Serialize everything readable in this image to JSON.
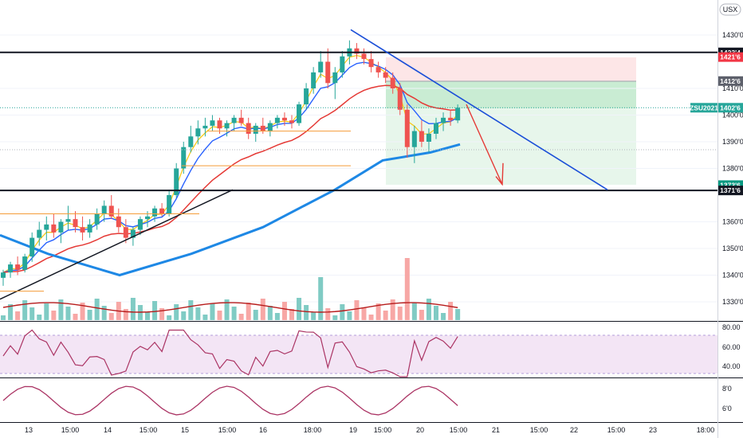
{
  "symbol": "ZSU2021",
  "currency": "USX",
  "colors": {
    "up": "#26a69a",
    "down": "#ef5350",
    "ema_blue": "#2962ff",
    "ema_red": "#e53935",
    "sma_thick": "#1e88e5",
    "yellow": "#f9c80e",
    "trendline": "#1b4fd8",
    "rsi_fill": "#f3e5f5",
    "rsi_line": "#ab3464",
    "tag_red": "#f23645",
    "tag_gray": "#5d606b",
    "tag_green": "#089981",
    "tag_black": "#131722",
    "tag_teal": "#26a69a"
  },
  "price_axis": {
    "labels": [
      "1430'0",
      "1410'0",
      "1400'0",
      "1390'0",
      "1380'0",
      "1360'0",
      "1350'0",
      "1340'0",
      "1330'0"
    ],
    "values": [
      1430,
      1410,
      1400,
      1390,
      1380,
      1360,
      1350,
      1340,
      1330
    ],
    "range": [
      1325,
      1440
    ]
  },
  "price_tags": [
    {
      "label": "1423'4",
      "value": 1423.5,
      "color": "tag_black"
    },
    {
      "label": "1421'6",
      "value": 1421.75,
      "color": "tag_red"
    },
    {
      "label": "1412'6",
      "value": 1412.75,
      "color": "tag_gray"
    },
    {
      "label": "ZSU2021",
      "value": 1402.75,
      "color": "tag_teal",
      "wide": true
    },
    {
      "label": "1402'6",
      "value": 1402.75,
      "color": "tag_teal"
    },
    {
      "label": "1373'6",
      "value": 1373.75,
      "color": "tag_green"
    },
    {
      "label": "1371'6",
      "value": 1371.75,
      "color": "tag_black"
    }
  ],
  "time_axis": [
    "13",
    "15:00",
    "14",
    "15:00",
    "15",
    "15:00",
    "16",
    "18:00",
    "19",
    "15:00",
    "20",
    "15:00",
    "21",
    "15:00",
    "22",
    "15:00",
    "23",
    "18:00"
  ],
  "rsi_axis": [
    "80.00",
    "60.00",
    "40.00"
  ],
  "stoch_axis": [
    "8'0",
    "6'0"
  ],
  "chart_data": {
    "type": "candlestick",
    "levels": {
      "resistance": 1423.5,
      "support": 1371.75,
      "stop": 1421.75,
      "entry": 1412.75,
      "target": 1373.75,
      "last": 1402.75
    },
    "candles": [
      [
        1339,
        1342,
        1336,
        1341
      ],
      [
        1341,
        1345,
        1339,
        1344
      ],
      [
        1344,
        1347,
        1340,
        1342
      ],
      [
        1342,
        1348,
        1341,
        1347
      ],
      [
        1347,
        1356,
        1345,
        1354
      ],
      [
        1354,
        1360,
        1351,
        1357
      ],
      [
        1357,
        1362,
        1353,
        1359
      ],
      [
        1359,
        1363,
        1354,
        1356
      ],
      [
        1356,
        1361,
        1352,
        1360
      ],
      [
        1360,
        1366,
        1357,
        1361
      ],
      [
        1361,
        1364,
        1356,
        1358
      ],
      [
        1358,
        1362,
        1353,
        1356
      ],
      [
        1356,
        1361,
        1354,
        1359
      ],
      [
        1359,
        1365,
        1357,
        1363
      ],
      [
        1363,
        1368,
        1360,
        1366
      ],
      [
        1366,
        1370,
        1361,
        1362
      ],
      [
        1362,
        1365,
        1356,
        1358
      ],
      [
        1358,
        1361,
        1352,
        1354
      ],
      [
        1354,
        1358,
        1351,
        1357
      ],
      [
        1357,
        1362,
        1355,
        1361
      ],
      [
        1361,
        1364,
        1358,
        1362
      ],
      [
        1362,
        1366,
        1360,
        1365
      ],
      [
        1365,
        1367,
        1362,
        1363
      ],
      [
        1363,
        1372,
        1362,
        1370
      ],
      [
        1370,
        1382,
        1369,
        1380
      ],
      [
        1380,
        1390,
        1378,
        1388
      ],
      [
        1388,
        1396,
        1386,
        1392
      ],
      [
        1392,
        1398,
        1389,
        1395
      ],
      [
        1395,
        1399,
        1392,
        1396
      ],
      [
        1396,
        1400,
        1394,
        1398
      ],
      [
        1398,
        1399,
        1393,
        1395
      ],
      [
        1395,
        1398,
        1392,
        1397
      ],
      [
        1397,
        1400,
        1394,
        1399
      ],
      [
        1399,
        1402,
        1396,
        1397
      ],
      [
        1397,
        1399,
        1391,
        1393
      ],
      [
        1393,
        1397,
        1390,
        1396
      ],
      [
        1396,
        1399,
        1393,
        1394
      ],
      [
        1394,
        1398,
        1392,
        1397
      ],
      [
        1397,
        1400,
        1395,
        1399
      ],
      [
        1399,
        1401,
        1396,
        1398
      ],
      [
        1398,
        1400,
        1395,
        1397
      ],
      [
        1397,
        1405,
        1396,
        1404
      ],
      [
        1404,
        1412,
        1402,
        1410
      ],
      [
        1410,
        1418,
        1408,
        1416
      ],
      [
        1416,
        1424,
        1414,
        1420
      ],
      [
        1420,
        1425,
        1410,
        1412
      ],
      [
        1412,
        1418,
        1406,
        1416
      ],
      [
        1416,
        1424,
        1414,
        1422
      ],
      [
        1422,
        1428,
        1419,
        1425
      ],
      [
        1425,
        1427,
        1421,
        1423
      ],
      [
        1423,
        1425,
        1419,
        1421
      ],
      [
        1421,
        1424,
        1416,
        1418
      ],
      [
        1418,
        1420,
        1414,
        1416
      ],
      [
        1416,
        1418,
        1412,
        1414
      ],
      [
        1414,
        1416,
        1408,
        1410
      ],
      [
        1410,
        1412,
        1400,
        1402
      ],
      [
        1402,
        1404,
        1384,
        1388
      ],
      [
        1388,
        1396,
        1382,
        1394
      ],
      [
        1394,
        1398,
        1388,
        1390
      ],
      [
        1390,
        1395,
        1386,
        1393
      ],
      [
        1393,
        1399,
        1391,
        1397
      ],
      [
        1397,
        1401,
        1394,
        1399
      ],
      [
        1399,
        1402,
        1396,
        1398
      ],
      [
        1398,
        1404,
        1397,
        1402.75
      ]
    ]
  }
}
